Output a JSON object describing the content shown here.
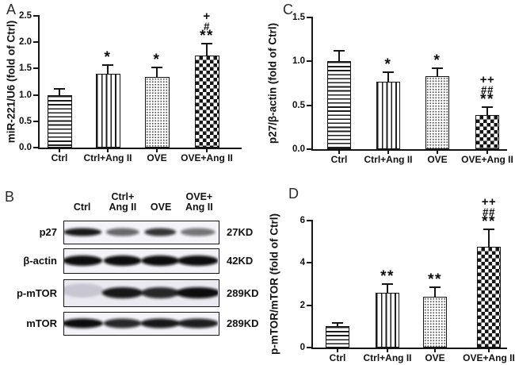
{
  "figure": {
    "background": "#ffffff",
    "ink": "#111111",
    "description": "Four-panel figure: bar charts (A, C, D) with significance markers and a western blot (B)"
  },
  "panels": {
    "a": {
      "label": "A"
    },
    "b": {
      "label": "B",
      "blot": {
        "lanes": [
          [
            "Ctrl"
          ],
          [
            "Ctrl+",
            "Ang II"
          ],
          [
            "OVE"
          ],
          [
            "OVE+",
            "Ang II"
          ]
        ],
        "rows": [
          {
            "protein": "p27",
            "weight": "27KD",
            "bands": [
              0.95,
              0.6,
              0.82,
              0.55
            ]
          },
          {
            "protein": "β-actin",
            "weight": "42KD",
            "bands": [
              1.0,
              1.0,
              1.0,
              1.0
            ]
          },
          {
            "protein": "p-mTOR",
            "weight": "289KD",
            "bands": [
              0.12,
              0.95,
              0.88,
              1.0
            ]
          },
          {
            "protein": "mTOR",
            "weight": "289KD",
            "bands": [
              1.0,
              0.88,
              0.95,
              0.92
            ]
          }
        ]
      }
    },
    "c": {
      "label": "C"
    },
    "d": {
      "label": "D"
    }
  },
  "chart_data": [
    {
      "id": "a",
      "type": "bar",
      "title": "",
      "ylabel": "miR-221/U6 (fold of Ctrl)",
      "xlabel": "",
      "ylim": [
        0,
        2.5
      ],
      "yticks": [
        "0.0",
        "0.5",
        "1.0",
        "1.5",
        "2.0",
        "2.5"
      ],
      "categories": [
        "Ctrl",
        "Ctrl+Ang II",
        "OVE",
        "OVE+Ang II"
      ],
      "values": [
        1.0,
        1.4,
        1.34,
        1.75
      ],
      "errors": [
        0.11,
        0.17,
        0.18,
        0.22
      ],
      "patterns": [
        "hlines",
        "vlines",
        "dots",
        "checker"
      ],
      "annotations": [
        [],
        [
          "*"
        ],
        [
          "*"
        ],
        [
          "+",
          "#",
          "**"
        ]
      ],
      "grid": false,
      "legend": null
    },
    {
      "id": "c",
      "type": "bar",
      "title": "",
      "ylabel": "p27/β-actin (fold of Ctrl)",
      "xlabel": "",
      "ylim": [
        0,
        1.5
      ],
      "yticks": [
        "0.0",
        "0.5",
        "1.0",
        "1.5"
      ],
      "categories": [
        "Ctrl",
        "Ctrl+Ang II",
        "OVE",
        "OVE+Ang II"
      ],
      "values": [
        1.0,
        0.77,
        0.83,
        0.39
      ],
      "errors": [
        0.12,
        0.11,
        0.09,
        0.09
      ],
      "patterns": [
        "hlines",
        "vlines",
        "dots",
        "checker"
      ],
      "annotations": [
        [],
        [
          "*"
        ],
        [
          "*"
        ],
        [
          "++",
          "##",
          "**"
        ]
      ],
      "grid": false,
      "legend": null
    },
    {
      "id": "d",
      "type": "bar",
      "title": "",
      "ylabel": "p-mTOR/mTOR (fold of Ctrl)",
      "xlabel": "",
      "ylim": [
        0,
        6
      ],
      "yticks": [
        "0",
        "2",
        "4",
        "6"
      ],
      "categories": [
        "Ctrl",
        "Ctrl+Ang II",
        "OVE",
        "OVE+Ang II"
      ],
      "values": [
        1.0,
        2.6,
        2.4,
        4.75
      ],
      "errors": [
        0.15,
        0.4,
        0.45,
        0.85
      ],
      "patterns": [
        "hlines",
        "vlines",
        "dots",
        "checker"
      ],
      "annotations": [
        [],
        [
          "**"
        ],
        [
          "**"
        ],
        [
          "++",
          "##",
          "**"
        ]
      ],
      "grid": false,
      "legend": null
    }
  ]
}
